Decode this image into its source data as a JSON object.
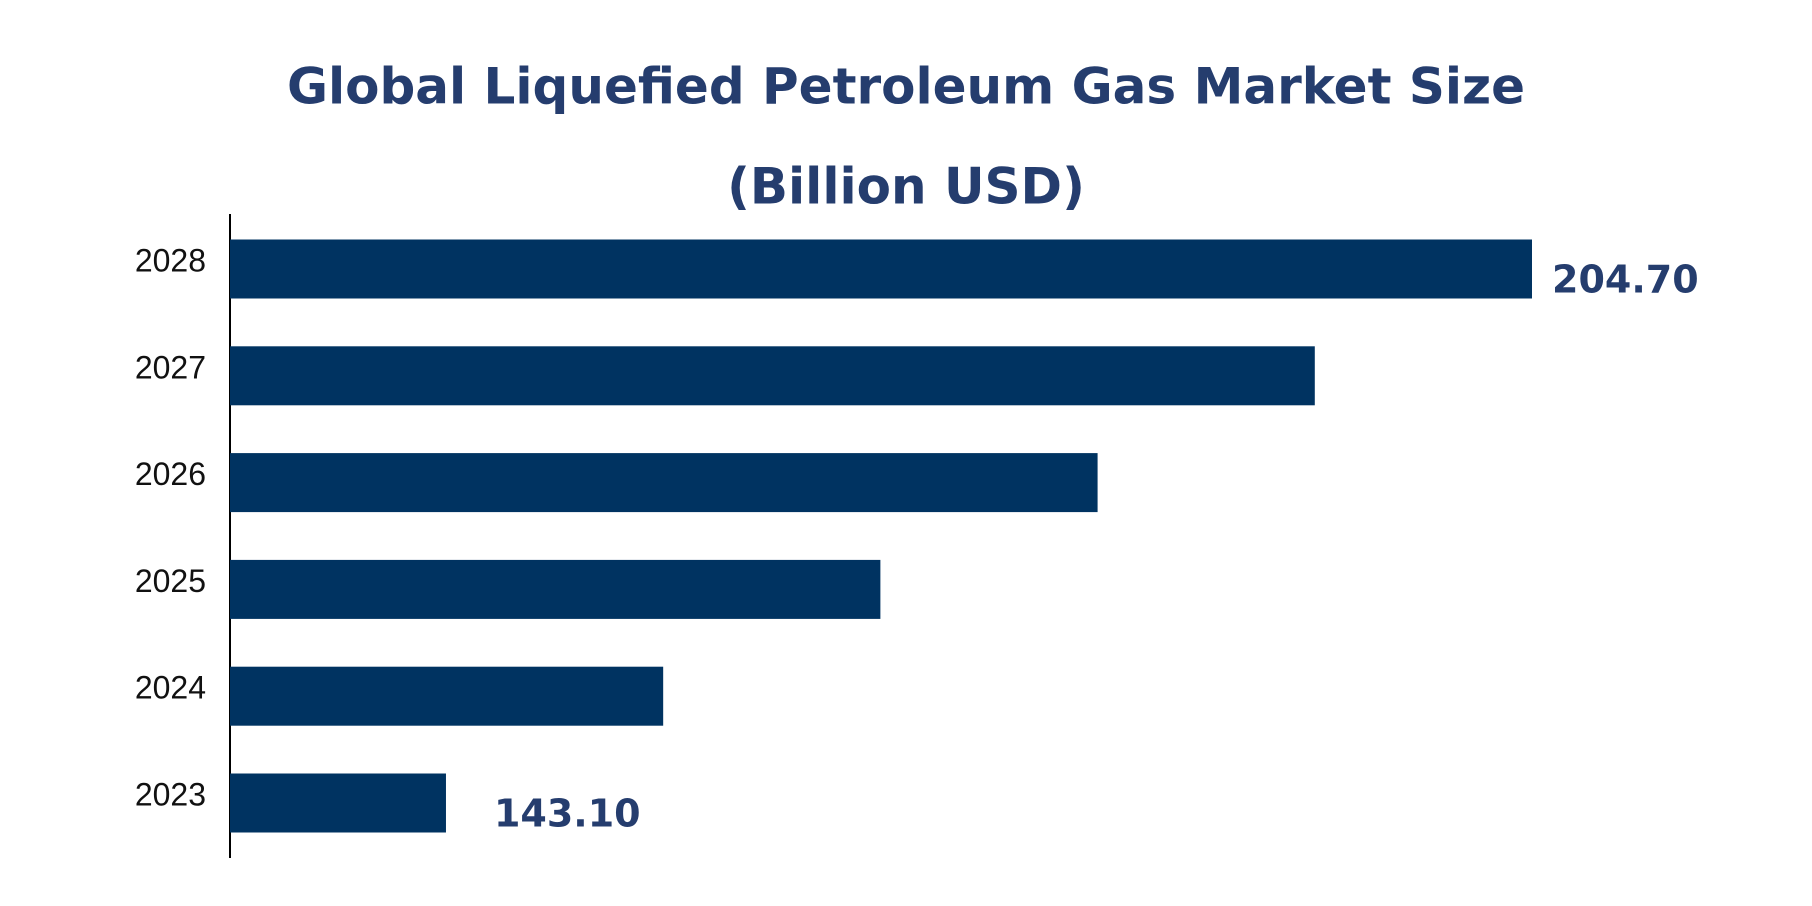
{
  "chart_data": {
    "type": "hbar",
    "title": "Global Liquefied Petroleum Gas Market Size",
    "subtitle": "(Billion USD)",
    "categories": [
      "2023",
      "2024",
      "2025",
      "2026",
      "2027",
      "2028"
    ],
    "values": [
      143.1,
      155.42,
      167.74,
      180.06,
      192.38,
      204.7
    ],
    "value_labels": [
      "143.10",
      null,
      null,
      null,
      null,
      "204.70"
    ],
    "color": "#003361",
    "xlim": [
      130.85,
      204.7
    ]
  }
}
